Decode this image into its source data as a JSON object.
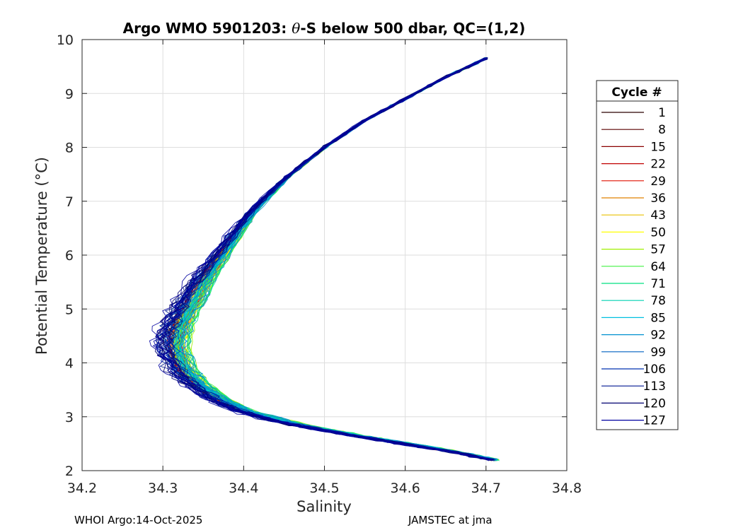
{
  "chart_data": {
    "type": "line",
    "title": "Argo WMO 5901203: θ-S below 500 dbar,  QC=(1,2)",
    "title_parts": {
      "prefix": "Argo WMO 5901203: ",
      "theta": "θ",
      "suffix": "-S below 500 dbar,  QC=(1,2)"
    },
    "xlabel": "Salinity",
    "ylabel": "Potential Temperature (°C)",
    "xlim": [
      34.2,
      34.8
    ],
    "ylim": [
      2,
      10
    ],
    "xticks": [
      "34.2",
      "34.3",
      "34.4",
      "34.5",
      "34.6",
      "34.7",
      "34.8"
    ],
    "yticks": [
      "2",
      "3",
      "4",
      "5",
      "6",
      "7",
      "8",
      "9",
      "10"
    ],
    "grid": true,
    "legend_title": "Cycle #",
    "legend_location": "outside-right",
    "legend": [
      {
        "label": "1",
        "color": "#2b0000"
      },
      {
        "label": "8",
        "color": "#5a0000"
      },
      {
        "label": "15",
        "color": "#8a0000"
      },
      {
        "label": "22",
        "color": "#c00000"
      },
      {
        "label": "29",
        "color": "#e01000"
      },
      {
        "label": "36",
        "color": "#e08000"
      },
      {
        "label": "43",
        "color": "#e8c000"
      },
      {
        "label": "50",
        "color": "#ffff00"
      },
      {
        "label": "57",
        "color": "#a0f000"
      },
      {
        "label": "64",
        "color": "#40f040"
      },
      {
        "label": "71",
        "color": "#00e080"
      },
      {
        "label": "78",
        "color": "#00d0b0"
      },
      {
        "label": "85",
        "color": "#00c0e0"
      },
      {
        "label": "92",
        "color": "#0090d0"
      },
      {
        "label": "99",
        "color": "#0060c0"
      },
      {
        "label": "106",
        "color": "#0030b0"
      },
      {
        "label": "113",
        "color": "#001890"
      },
      {
        "label": "120",
        "color": "#000070"
      },
      {
        "label": "127",
        "color": "#0000a0"
      }
    ],
    "reference_profile": {
      "salinity": [
        34.71,
        34.66,
        34.6,
        34.55,
        34.5,
        34.45,
        34.4,
        34.37,
        34.34,
        34.32,
        34.31,
        34.315,
        34.33,
        34.35,
        34.38,
        34.41,
        34.45,
        34.5,
        34.55,
        34.6,
        34.65,
        34.7
      ],
      "theta": [
        2.2,
        2.35,
        2.5,
        2.62,
        2.75,
        2.9,
        3.1,
        3.3,
        3.6,
        3.9,
        4.3,
        4.7,
        5.1,
        5.6,
        6.2,
        6.8,
        7.4,
        8.0,
        8.5,
        8.9,
        9.3,
        9.65
      ]
    },
    "series_count": 19
  },
  "footer": {
    "left": "WHOI Argo:14-Oct-2025",
    "right": "JAMSTEC at jma"
  }
}
